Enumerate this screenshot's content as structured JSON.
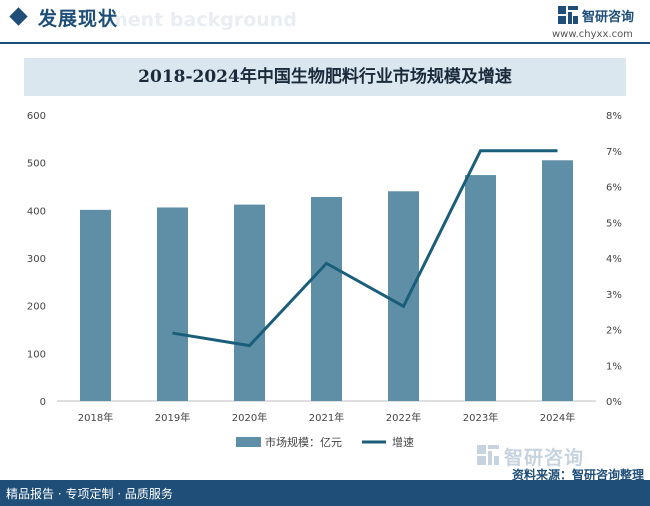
{
  "header": {
    "section_title": "发展现状",
    "bg_word": "ment background",
    "brand": "智研咨询",
    "website": "www.chyxx.com"
  },
  "chart_data": {
    "type": "bar",
    "title": "2018-2024年中国生物肥料行业市场规模及增速",
    "categories": [
      "2018年",
      "2019年",
      "2020年",
      "2021年",
      "2022年",
      "2023年",
      "2024年"
    ],
    "series": [
      {
        "name": "市场规模：亿元",
        "type": "bar",
        "axis": "left",
        "color": "#5f8fa7",
        "values": [
          401,
          406,
          412,
          428,
          440,
          474,
          505
        ]
      },
      {
        "name": "增速",
        "type": "line",
        "axis": "right",
        "color": "#1b5e7a",
        "values": [
          null,
          1.9,
          1.55,
          3.85,
          2.65,
          7.0,
          7.0
        ]
      }
    ],
    "y_left": {
      "min": 0,
      "max": 600,
      "ticks": [
        "0",
        "100",
        "200",
        "300",
        "400",
        "500",
        "600"
      ]
    },
    "y_right": {
      "min": 0,
      "max": 8,
      "ticks": [
        "0%",
        "1%",
        "2%",
        "3%",
        "4%",
        "5%",
        "6%",
        "7%",
        "8%"
      ]
    },
    "grid": false,
    "legend_position": "bottom"
  },
  "footer": {
    "left": "精品报告 · 专项定制 · 品质服务",
    "source": "资料来源：智研咨询整理"
  },
  "watermark": {
    "brand": "智研咨询"
  }
}
